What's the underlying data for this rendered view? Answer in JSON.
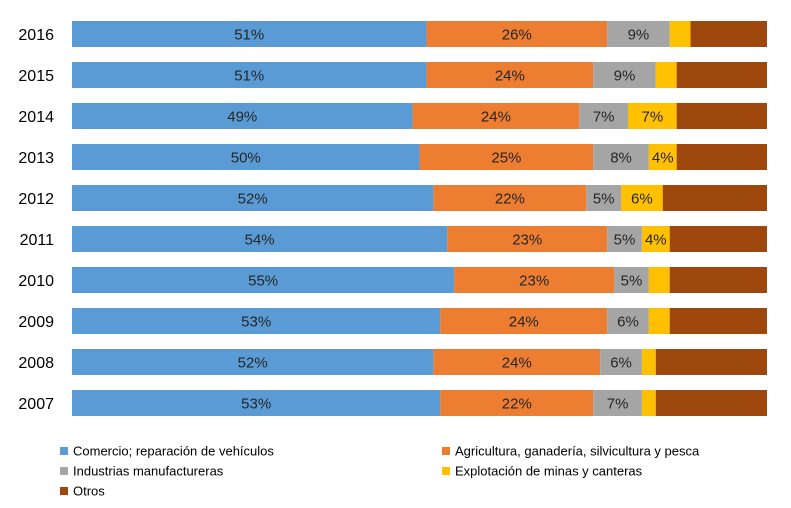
{
  "chart_data": {
    "type": "bar",
    "orientation": "horizontal",
    "stacked": "percent",
    "grid": false,
    "legend_position": "bottom",
    "categories": [
      "2016",
      "2015",
      "2014",
      "2013",
      "2012",
      "2011",
      "2010",
      "2009",
      "2008",
      "2007"
    ],
    "series": [
      {
        "name": "Comercio; reparación de vehículos",
        "color": "#5B9BD5",
        "values": [
          51,
          51,
          49,
          50,
          52,
          54,
          55,
          53,
          52,
          53
        ],
        "labels": [
          "51%",
          "51%",
          "49%",
          "50%",
          "52%",
          "54%",
          "55%",
          "53%",
          "52%",
          "53%"
        ]
      },
      {
        "name": "Agricultura, ganadería,  silvicultura y pesca",
        "color": "#ED7D31",
        "values": [
          26,
          24,
          24,
          25,
          22,
          23,
          23,
          24,
          24,
          22
        ],
        "labels": [
          "26%",
          "24%",
          "24%",
          "25%",
          "22%",
          "23%",
          "23%",
          "24%",
          "24%",
          "22%"
        ]
      },
      {
        "name": "Industrias manufactureras",
        "color": "#A5A5A5",
        "values": [
          9,
          9,
          7,
          8,
          5,
          5,
          5,
          6,
          6,
          7
        ],
        "labels": [
          "9%",
          "9%",
          "7%",
          "8%",
          "5%",
          "5%",
          "5%",
          "6%",
          "6%",
          "7%"
        ]
      },
      {
        "name": "Explotación de minas y canteras",
        "color": "#FFC000",
        "values": [
          3,
          3,
          7,
          4,
          6,
          4,
          3,
          3,
          2,
          2
        ],
        "labels": [
          "",
          "",
          "7%",
          "4%",
          "6%",
          "4%",
          "",
          "",
          "",
          ""
        ]
      },
      {
        "name": "Otros",
        "color": "#9E480E",
        "values": [
          11,
          13,
          13,
          13,
          15,
          14,
          14,
          14,
          16,
          16
        ],
        "labels": [
          "",
          "",
          "",
          "",
          "",
          "",
          "",
          "",
          "",
          ""
        ]
      }
    ]
  }
}
